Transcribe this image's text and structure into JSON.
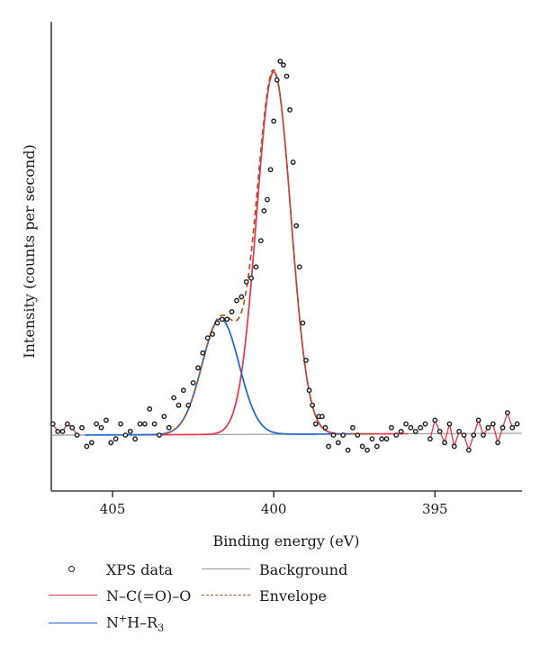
{
  "chart_data": {
    "type": "line",
    "title": "",
    "xlabel": "Binding energy (eV)",
    "ylabel": "Intensity (counts per second)",
    "x_reversed": true,
    "xlim": [
      406.9,
      392.3
    ],
    "ylim": [
      -6,
      100
    ],
    "x_ticks": [
      405,
      400,
      395
    ],
    "x_tick_labels": [
      "405",
      "400",
      "395"
    ],
    "y_ticks_shown": false,
    "grid": false,
    "legend_position": "bottom",
    "series": [
      {
        "name": "XPS data",
        "style": "scatter",
        "color": "#1a1a1a",
        "x": [
          406.85,
          406.7,
          406.55,
          406.4,
          406.25,
          406.1,
          405.95,
          405.8,
          405.65,
          405.5,
          405.35,
          405.2,
          405.05,
          404.9,
          404.75,
          404.6,
          404.45,
          404.3,
          404.15,
          404.0,
          403.85,
          403.7,
          403.55,
          403.4,
          403.25,
          403.1,
          402.95,
          402.8,
          402.65,
          402.5,
          402.35,
          402.2,
          402.05,
          401.9,
          401.75,
          401.6,
          401.45,
          401.3,
          401.15,
          401.0,
          400.85,
          400.7,
          400.55,
          400.4,
          400.3,
          400.2,
          400.1,
          400.0,
          399.9,
          399.8,
          399.7,
          399.6,
          399.5,
          399.4,
          399.3,
          399.2,
          399.1,
          399.0,
          398.9,
          398.8,
          398.7,
          398.6,
          398.5,
          398.4,
          398.3,
          398.15,
          398.0,
          397.85,
          397.7,
          397.55,
          397.4,
          397.25,
          397.1,
          396.95,
          396.8,
          396.65,
          396.5,
          396.35,
          396.2,
          396.05,
          395.9,
          395.75,
          395.6,
          395.45,
          395.3,
          395.15,
          395.0,
          394.85,
          394.7,
          394.55,
          394.4,
          394.25,
          394.1,
          393.95,
          393.8,
          393.65,
          393.5,
          393.35,
          393.2,
          393.05,
          392.9,
          392.75,
          392.6,
          392.45
        ],
        "y": [
          3,
          1,
          1,
          3,
          2,
          0,
          2,
          -3,
          -2,
          3,
          2,
          4,
          -2,
          -1,
          3,
          0,
          1,
          -1,
          3,
          3,
          7,
          3,
          0,
          5,
          2,
          10,
          8,
          12,
          8,
          14,
          18,
          22,
          26,
          27,
          30,
          31,
          31,
          33,
          36,
          37,
          41,
          42,
          45,
          52,
          60,
          63,
          71,
          84,
          95,
          100,
          99,
          96,
          87,
          73,
          56,
          45,
          30,
          20,
          12,
          8,
          3,
          5,
          5,
          2,
          -3,
          0,
          -2,
          0,
          -4,
          2,
          0,
          -3,
          -4,
          -1,
          -3,
          -1,
          -1,
          2,
          0,
          1,
          3,
          2,
          1,
          2,
          3,
          -1,
          4,
          1,
          -2,
          3,
          -3,
          1,
          0,
          -4,
          0,
          4,
          0,
          2,
          3,
          -2,
          2,
          6,
          2,
          3
        ]
      },
      {
        "name": "N–C(=O)–O",
        "style": "fit",
        "color": "#e8334a",
        "center": 400.0,
        "amplitude": 97,
        "fwhm": 1.25
      },
      {
        "name": "N⁺H–R₃",
        "style": "fit",
        "color": "#1a63d6",
        "center": 401.65,
        "amplitude": 31,
        "fwhm": 1.35
      },
      {
        "name": "Background",
        "style": "baseline",
        "color": "#9a9a9a",
        "y": [
          0,
          0.5
        ]
      },
      {
        "name": "Envelope",
        "style": "envelope",
        "color": "#a2582a"
      }
    ]
  },
  "legend": {
    "xps_data": "XPS data",
    "background": "Background",
    "nco_label": "N–C(=O)–O",
    "envelope": "Envelope",
    "nhr_n": "N",
    "nhr_sup": "+",
    "nhr_h": "H–R",
    "nhr_sub": "3"
  }
}
